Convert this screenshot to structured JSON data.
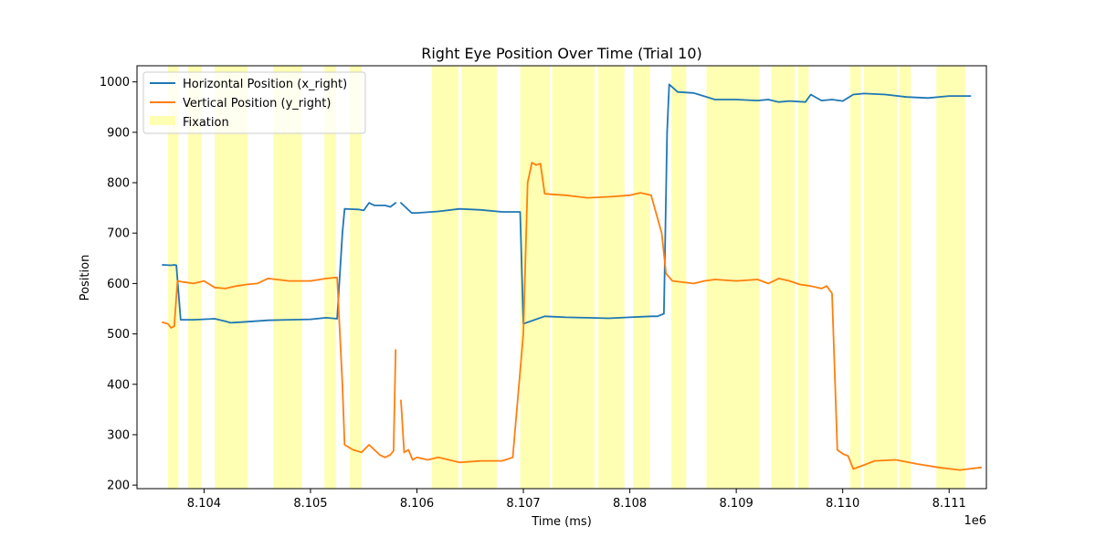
{
  "chart_data": {
    "type": "line",
    "title": "Right Eye Position Over Time (Trial 10)",
    "xlabel": "Time (ms)",
    "ylabel": "Position",
    "x_offset_label": "1e6",
    "xlim": [
      8.10337,
      8.11135
    ],
    "ylim": [
      193,
      1032
    ],
    "x_ticks": [
      8.104,
      8.105,
      8.106,
      8.107,
      8.108,
      8.109,
      8.11,
      8.111
    ],
    "x_tick_labels": [
      "8.104",
      "8.105",
      "8.106",
      "8.107",
      "8.108",
      "8.109",
      "8.110",
      "8.111"
    ],
    "y_ticks": [
      200,
      300,
      400,
      500,
      600,
      700,
      800,
      900,
      1000
    ],
    "y_tick_labels": [
      "200",
      "300",
      "400",
      "500",
      "600",
      "700",
      "800",
      "900",
      "1000"
    ],
    "grid": false,
    "legend_position": "top-left",
    "legend": [
      "Horizontal Position (x_right)",
      "Vertical Position (y_right)",
      "Fixation"
    ],
    "fixation_color": "#ffff99",
    "fixations": [
      [
        8.10366,
        8.10376
      ],
      [
        8.10385,
        8.10398
      ],
      [
        8.1041,
        8.10441
      ],
      [
        8.10465,
        8.10492
      ],
      [
        8.10513,
        8.10524
      ],
      [
        8.10537,
        8.10548
      ],
      [
        8.10614,
        8.10639
      ],
      [
        8.10642,
        8.10675
      ],
      [
        8.10697,
        8.10725
      ],
      [
        8.10727,
        8.10767
      ],
      [
        8.1077,
        8.10795
      ],
      [
        8.10803,
        8.10819
      ],
      [
        8.10839,
        8.10853
      ],
      [
        8.10872,
        8.10922
      ],
      [
        8.10933,
        8.10955
      ],
      [
        8.10958,
        8.10968
      ],
      [
        8.11007,
        8.11017
      ],
      [
        8.1102,
        8.11051
      ],
      [
        8.11053,
        8.11064
      ],
      [
        8.11088,
        8.11115
      ]
    ],
    "series": [
      {
        "name": "Horizontal Position (x_right)",
        "color": "#1f77b4",
        "x": [
          8.10361,
          8.10369,
          8.10372,
          8.10374,
          8.10378,
          8.1039,
          8.1041,
          8.1042,
          8.10425,
          8.1044,
          8.1046,
          8.1048,
          8.105,
          8.10515,
          8.10525,
          8.1053,
          8.10532,
          8.10545,
          8.1055,
          8.10555,
          8.1056,
          8.1057,
          8.10575,
          8.1058,
          null,
          8.10585,
          8.10595,
          8.106,
          8.1062,
          8.1064,
          8.1066,
          8.1068,
          8.10697,
          8.107,
          8.1072,
          8.1074,
          8.1076,
          8.1078,
          8.108,
          8.1082,
          8.10826,
          8.10832,
          8.10835,
          8.10837,
          8.10845,
          8.1086,
          8.1088,
          8.109,
          8.1092,
          8.1093,
          8.1094,
          8.1095,
          8.10965,
          8.1097,
          8.1098,
          8.1099,
          8.11,
          8.1101,
          8.1102,
          8.1104,
          8.1106,
          8.1108,
          8.111,
          8.1112
        ],
        "y": [
          637,
          636,
          637,
          636,
          528,
          528,
          530,
          525,
          522,
          524,
          527,
          528,
          529,
          532,
          530,
          700,
          748,
          747,
          745,
          760,
          755,
          755,
          752,
          760,
          null,
          760,
          740,
          740,
          743,
          748,
          746,
          742,
          742,
          520,
          535,
          533,
          532,
          531,
          533,
          535,
          535,
          540,
          900,
          995,
          980,
          978,
          965,
          965,
          963,
          965,
          960,
          962,
          960,
          975,
          963,
          965,
          962,
          975,
          977,
          975,
          970,
          968,
          972,
          972
        ]
      },
      {
        "name": "Vertical Position (y_right)",
        "color": "#ff7f0e",
        "x": [
          8.10361,
          8.10366,
          8.10369,
          8.10372,
          8.10375,
          8.1038,
          8.1039,
          8.104,
          8.1041,
          8.1042,
          8.1043,
          8.1044,
          8.1045,
          8.1046,
          8.1048,
          8.105,
          8.10515,
          8.10525,
          8.1053,
          8.10532,
          8.1054,
          8.10548,
          8.10555,
          8.1056,
          8.10565,
          8.1057,
          8.10575,
          8.10578,
          8.1058,
          null,
          8.10585,
          8.10588,
          8.10592,
          8.10596,
          8.106,
          8.1061,
          8.1062,
          8.1063,
          8.1064,
          8.1066,
          8.1068,
          8.1069,
          8.107,
          8.10704,
          8.10708,
          8.10712,
          8.10716,
          8.1072,
          8.1074,
          8.1076,
          8.1078,
          8.108,
          8.1081,
          8.1082,
          8.1083,
          8.10834,
          8.1084,
          8.1086,
          8.1087,
          8.1088,
          8.109,
          8.1092,
          8.1093,
          8.1094,
          8.1095,
          8.1096,
          8.1097,
          8.1098,
          8.10985,
          8.1099,
          8.10995,
          8.11,
          8.11005,
          8.1101,
          8.1102,
          8.1103,
          8.1105,
          8.1107,
          8.1109,
          8.1111,
          8.1113
        ],
        "y": [
          523,
          520,
          512,
          515,
          605,
          603,
          600,
          605,
          592,
          590,
          595,
          598,
          600,
          610,
          605,
          605,
          610,
          612,
          400,
          280,
          270,
          265,
          280,
          270,
          260,
          255,
          260,
          268,
          468,
          null,
          368,
          265,
          270,
          250,
          255,
          250,
          255,
          250,
          245,
          248,
          248,
          255,
          500,
          800,
          840,
          835,
          838,
          778,
          775,
          770,
          772,
          775,
          780,
          775,
          700,
          620,
          605,
          600,
          605,
          608,
          605,
          608,
          600,
          610,
          605,
          598,
          595,
          590,
          595,
          580,
          270,
          262,
          258,
          232,
          240,
          248,
          250,
          242,
          235,
          230,
          235
        ]
      }
    ]
  }
}
